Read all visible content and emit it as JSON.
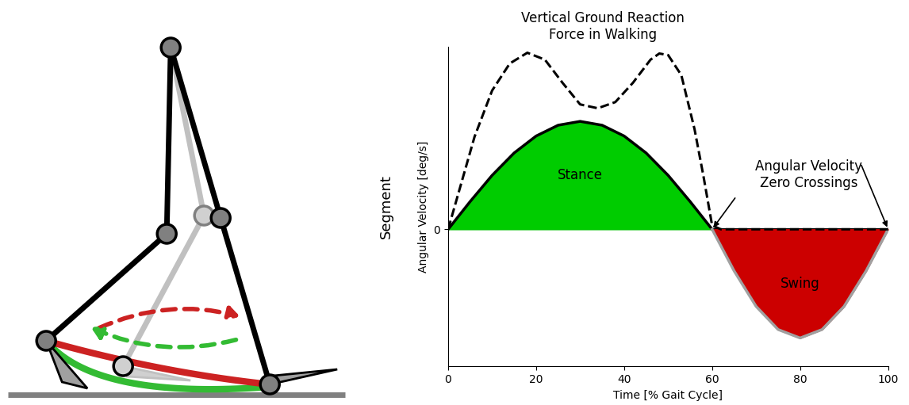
{
  "chart_data": {
    "type": "line",
    "xlabel": "Time [% Gait Cycle]",
    "ylabel": "Angular Velocity [deg/s]",
    "xlim": [
      0,
      100
    ],
    "xticks": [
      0,
      20,
      40,
      60,
      80,
      100
    ],
    "ylim": [
      -178,
      237
    ],
    "yticks": [
      0
    ],
    "grid": false,
    "series": [
      {
        "name": "Stance",
        "type": "area",
        "color": "#00cc00",
        "x": [
          0,
          5,
          10,
          15,
          20,
          25,
          30,
          35,
          40,
          45,
          50,
          55,
          60
        ],
        "values": [
          0,
          36,
          70,
          99,
          121,
          135,
          140,
          135,
          121,
          99,
          70,
          36,
          0
        ]
      },
      {
        "name": "Swing",
        "type": "area",
        "color": "#cc0000",
        "x": [
          60,
          65,
          70,
          75,
          80,
          85,
          90,
          95,
          100
        ],
        "values": [
          0,
          -54,
          -100,
          -130,
          -141,
          -130,
          -100,
          -54,
          0
        ]
      },
      {
        "name": "Vertical Ground Reaction\nForce in Walking",
        "type": "line",
        "line_style": "dashed",
        "color": "#000000",
        "x": [
          0,
          3,
          6,
          10,
          14,
          18,
          22,
          26,
          30,
          34,
          38,
          42,
          46,
          48,
          50,
          53,
          56,
          58,
          60,
          62,
          100
        ],
        "values": [
          0,
          60,
          120,
          180,
          215,
          229,
          220,
          190,
          162,
          157,
          165,
          190,
          220,
          228,
          226,
          200,
          130,
          70,
          5,
          0,
          0
        ]
      }
    ],
    "annotations": [
      {
        "text": "Segment"
      },
      {
        "text": "Angular Velocity\nZero Crossings",
        "x": [
          60,
          100
        ],
        "y": [
          0,
          0
        ]
      }
    ]
  }
}
